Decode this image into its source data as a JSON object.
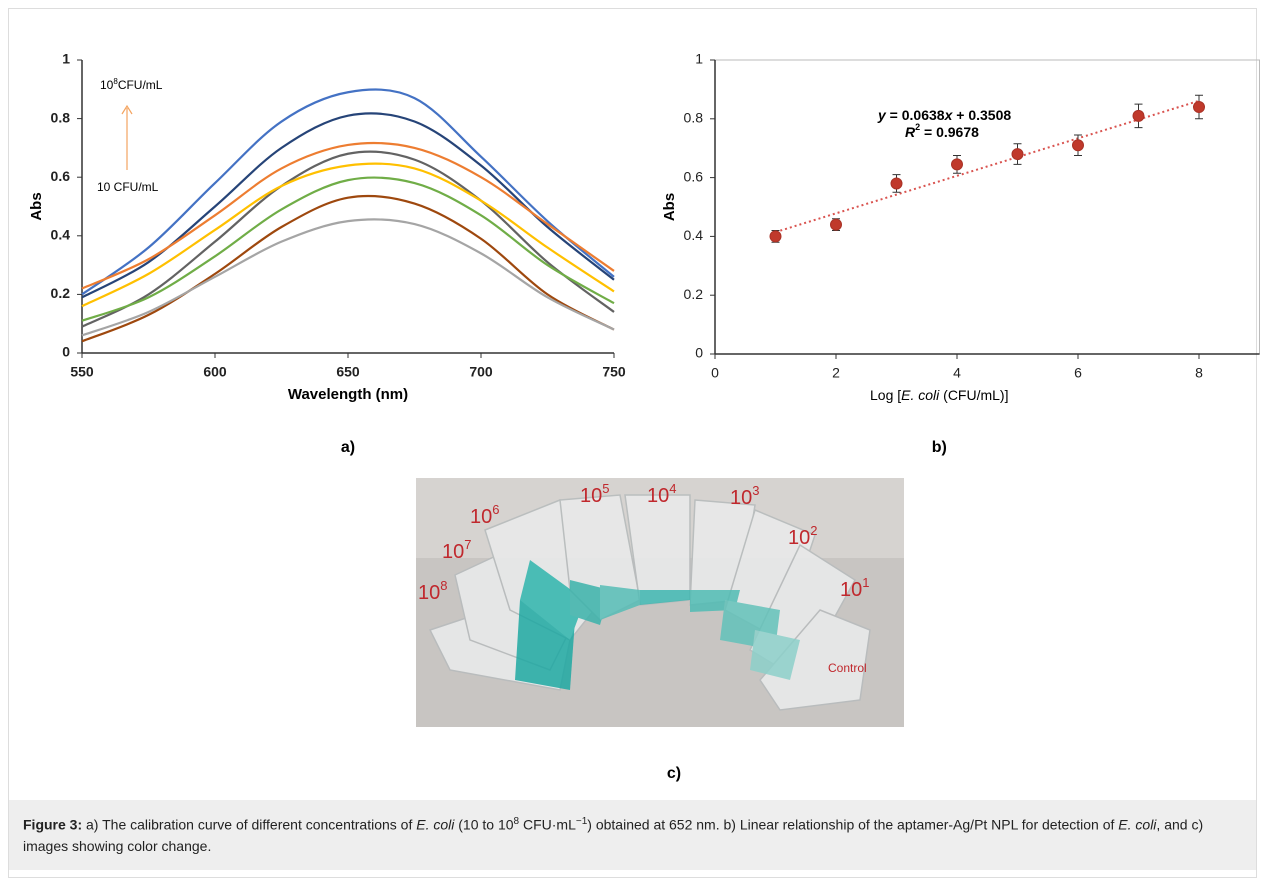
{
  "chart_data": [
    {
      "type": "line",
      "x_label": "Wavelength (nm)",
      "y_label": "Abs",
      "panel_label": "a)",
      "x": [
        550,
        575,
        600,
        625,
        650,
        675,
        700,
        725,
        750
      ],
      "series": [
        {
          "color": "#4472c4",
          "values": [
            0.2,
            0.36,
            0.58,
            0.79,
            0.89,
            0.87,
            0.67,
            0.45,
            0.26
          ]
        },
        {
          "color": "#264478",
          "values": [
            0.19,
            0.31,
            0.5,
            0.7,
            0.81,
            0.79,
            0.64,
            0.43,
            0.25
          ]
        },
        {
          "color": "#ed7d31",
          "values": [
            0.22,
            0.32,
            0.47,
            0.63,
            0.71,
            0.7,
            0.6,
            0.44,
            0.28
          ]
        },
        {
          "color": "#636363",
          "values": [
            0.09,
            0.2,
            0.38,
            0.57,
            0.68,
            0.66,
            0.52,
            0.31,
            0.14
          ]
        },
        {
          "color": "#ffc000",
          "values": [
            0.16,
            0.27,
            0.42,
            0.57,
            0.64,
            0.63,
            0.52,
            0.36,
            0.21
          ]
        },
        {
          "color": "#70ad47",
          "values": [
            0.11,
            0.19,
            0.33,
            0.49,
            0.59,
            0.58,
            0.47,
            0.3,
            0.17
          ]
        },
        {
          "color": "#9e480e",
          "values": [
            0.04,
            0.13,
            0.27,
            0.43,
            0.53,
            0.51,
            0.39,
            0.2,
            0.08
          ]
        },
        {
          "color": "#a5a5a5",
          "values": [
            0.06,
            0.14,
            0.26,
            0.38,
            0.45,
            0.44,
            0.34,
            0.19,
            0.08
          ]
        }
      ],
      "annotations": [
        [
          "10",
          "8",
          "CFU/mL"
        ],
        "10 CFU/mL"
      ],
      "xlim": [
        550,
        750
      ],
      "xticks": [
        550,
        600,
        650,
        700,
        750
      ],
      "ylim": [
        0,
        1
      ],
      "yticks": [
        0,
        0.2,
        0.4,
        0.6,
        0.8,
        1
      ]
    },
    {
      "type": "scatter",
      "x_label": [
        "Log [",
        "E. coli",
        " (CFU/mL)]"
      ],
      "y_label": "Abs",
      "panel_label": "b)",
      "x": [
        1,
        2,
        3,
        4,
        5,
        6,
        7,
        8
      ],
      "series": [
        {
          "color": "#c0392b",
          "values": [
            0.4,
            0.44,
            0.58,
            0.645,
            0.68,
            0.71,
            0.81,
            0.84
          ],
          "errors": [
            0.02,
            0.02,
            0.03,
            0.03,
            0.035,
            0.035,
            0.04,
            0.04
          ]
        }
      ],
      "trendline": {
        "slope": 0.0638,
        "intercept": 0.3508,
        "color": "#d9534f"
      },
      "equation": [
        "y",
        " = 0.0638",
        "x",
        " + 0.3508"
      ],
      "r2": [
        "R",
        "2",
        " = 0.9678"
      ],
      "xlim": [
        0,
        9
      ],
      "xticks": [
        0,
        2,
        4,
        6,
        8
      ],
      "ylim": [
        0,
        1
      ],
      "yticks": [
        0,
        0.2,
        0.4,
        0.6,
        0.8,
        1
      ]
    }
  ],
  "photo": {
    "labels": [
      [
        "10",
        "8"
      ],
      [
        "10",
        "7"
      ],
      [
        "10",
        "6"
      ],
      [
        "10",
        "5"
      ],
      [
        "10",
        "4"
      ],
      [
        "10",
        "3"
      ],
      [
        "10",
        "2"
      ],
      [
        "10",
        "1"
      ]
    ],
    "control": "Control",
    "panel_label": "c)"
  },
  "caption": [
    "Figure 3:",
    " a) The calibration curve of different concentrations of ",
    "E. coli",
    " (10 to 10",
    "8",
    " CFU·mL",
    "−1",
    ") obtained at 652 nm. b) Linear relationship of the aptamer-Ag/Pt NPL for detection of ",
    "E. coli",
    ", and c) images showing color change."
  ]
}
